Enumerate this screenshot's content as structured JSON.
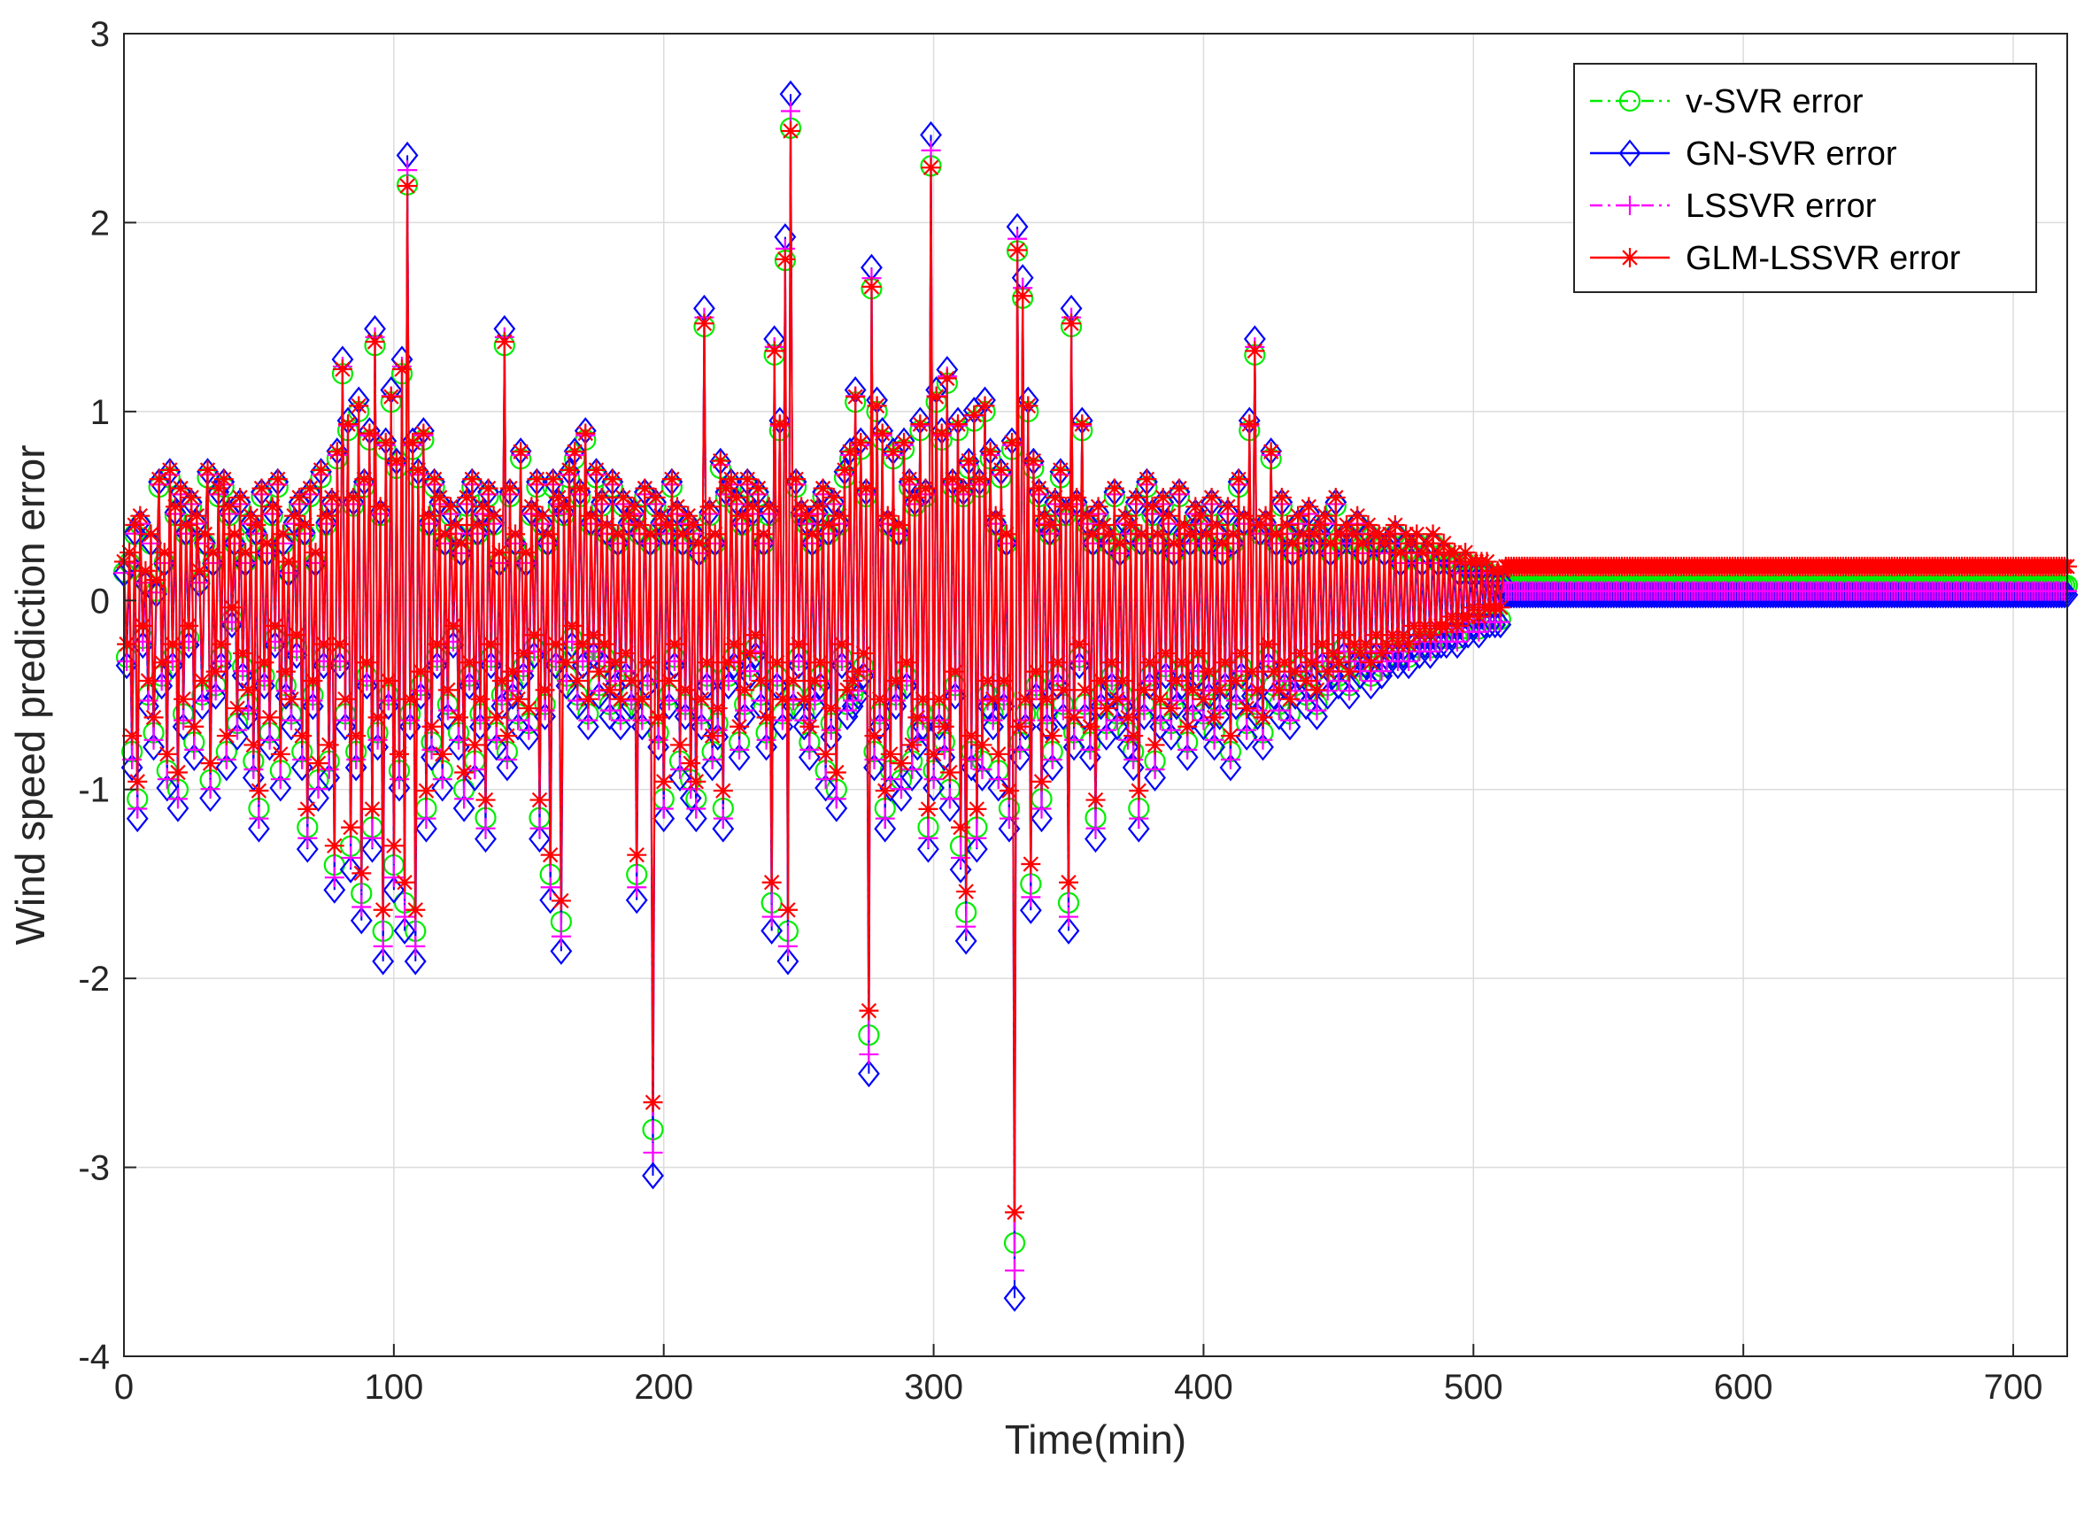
{
  "chart_data": {
    "type": "line",
    "title": "",
    "xlabel": "Time(min)",
    "ylabel": "Wind speed prediction error",
    "xlim": [
      0,
      720
    ],
    "ylim": [
      -4,
      3
    ],
    "xticks": [
      0,
      100,
      200,
      300,
      400,
      500,
      600,
      700
    ],
    "yticks": [
      -4,
      -3,
      -2,
      -1,
      0,
      1,
      2,
      3
    ],
    "xtick_labels": [
      "0",
      "100",
      "200",
      "300",
      "400",
      "500",
      "600",
      "700"
    ],
    "ytick_labels": [
      "-4",
      "-3",
      "-2",
      "-1",
      "0",
      "1",
      "2",
      "3"
    ],
    "grid": true,
    "legend_position": "top-right",
    "sample_step_min": 1,
    "base_error": [
      0.15,
      -0.3,
      0.2,
      -0.8,
      0.35,
      -1.05,
      0.4,
      -0.2,
      0.1,
      -0.5,
      0.3,
      -0.7,
      0.05,
      0.6,
      -0.4,
      0.2,
      -0.9,
      0.65,
      -0.3,
      0.45,
      -1.0,
      0.55,
      -0.6,
      0.35,
      -0.2,
      0.5,
      -0.75,
      0.4,
      0.1,
      -0.5,
      0.3,
      0.65,
      -0.95,
      0.2,
      -0.45,
      0.55,
      -0.3,
      0.6,
      -0.8,
      0.45,
      -0.1,
      0.3,
      -0.65,
      0.5,
      -0.35,
      0.2,
      -0.55,
      0.4,
      -0.85,
      0.35,
      -1.1,
      0.55,
      -0.4,
      0.25,
      -0.7,
      0.45,
      -0.2,
      0.6,
      -0.9,
      0.3,
      -0.45,
      0.15,
      -0.6,
      0.4,
      -0.25,
      0.5,
      -0.8,
      0.35,
      -1.2,
      0.55,
      -0.5,
      0.2,
      -0.95,
      0.65,
      -0.3,
      0.4,
      -0.85,
      0.5,
      -1.4,
      0.75,
      -0.3,
      1.2,
      -0.6,
      0.9,
      -1.3,
      0.5,
      -0.8,
      1.0,
      -1.55,
      0.6,
      -0.4,
      0.85,
      -1.2,
      1.35,
      -0.7,
      0.45,
      -1.75,
      0.8,
      -0.5,
      1.05,
      -1.4,
      0.7,
      -0.9,
      1.2,
      -1.6,
      2.2,
      -0.6,
      0.8,
      -1.75,
      0.65,
      -0.45,
      0.85,
      -1.1,
      0.4,
      -0.75,
      0.6,
      -0.3,
      0.5,
      -0.9,
      0.3,
      -0.55,
      0.45,
      -0.2,
      0.35,
      -0.7,
      0.25,
      -1.0,
      0.5,
      -0.4,
      0.6,
      -0.85,
      0.35,
      -0.6,
      0.45,
      -1.15,
      0.55,
      -0.3,
      0.4,
      -0.7,
      0.2,
      -0.5,
      1.35,
      -0.8,
      0.55,
      -0.45,
      0.3,
      -0.6,
      0.75,
      -0.35,
      0.2,
      -0.65,
      0.45,
      -0.25,
      0.6,
      -1.15,
      0.4,
      -0.55,
      0.3,
      -1.45,
      0.6,
      -0.3,
      0.5,
      -1.7,
      0.45,
      -0.4,
      0.65,
      -0.2,
      0.75,
      -0.5,
      0.55,
      -0.3,
      0.85,
      -0.6,
      0.4,
      -0.25,
      0.65,
      -0.45,
      0.5,
      -0.3,
      0.35,
      -0.55,
      0.6,
      -0.4,
      0.3,
      -0.6,
      0.5,
      -0.35,
      0.4,
      -0.5,
      0.45,
      -1.45,
      0.35,
      -0.6,
      0.55,
      -0.4,
      0.3,
      -2.8,
      0.5,
      -0.7,
      0.4,
      -1.05,
      0.35,
      -0.5,
      0.6,
      -0.3,
      0.45,
      -0.85,
      0.3,
      -0.55,
      0.4,
      -0.95,
      0.35,
      -1.05,
      0.25,
      -0.6,
      1.45,
      -0.4,
      0.45,
      -0.8,
      0.3,
      -0.65,
      0.7,
      -1.1,
      0.55,
      -0.4,
      0.6,
      -0.3,
      0.5,
      -0.75,
      0.4,
      -0.55,
      0.6,
      -0.35,
      0.45,
      -0.25,
      0.55,
      -0.5,
      0.3,
      -0.7,
      0.45,
      -1.6,
      1.3,
      -0.4,
      0.9,
      -0.6,
      1.8,
      -1.75,
      2.5,
      -0.5,
      0.6,
      -0.3,
      0.45,
      -0.6,
      0.4,
      -0.75,
      0.3,
      -0.5,
      0.45,
      -0.4,
      0.55,
      -0.9,
      0.35,
      -0.65,
      0.5,
      -1.0,
      0.4,
      -0.3,
      0.65,
      -0.55,
      0.75,
      -0.5,
      1.05,
      -0.45,
      0.8,
      -0.35,
      0.55,
      -2.3,
      1.65,
      -0.8,
      1.0,
      -0.6,
      0.85,
      -1.1,
      0.4,
      -0.9,
      0.75,
      -0.5,
      0.35,
      -0.95,
      0.8,
      -0.4,
      0.6,
      -0.85,
      0.5,
      -0.7,
      0.9,
      -0.6,
      0.55,
      -1.2,
      2.3,
      -0.9,
      1.05,
      -0.6,
      0.85,
      -0.75,
      1.15,
      -1.0,
      0.6,
      -0.45,
      0.9,
      -1.3,
      0.55,
      -1.65,
      0.7,
      -0.8,
      0.95,
      -1.2,
      0.6,
      -0.85,
      1.0,
      -0.5,
      0.75,
      -0.6,
      0.4,
      -0.9,
      0.65,
      -0.5,
      0.3,
      -1.1,
      0.8,
      -3.4,
      1.85,
      -0.75,
      1.6,
      -0.6,
      1.0,
      -1.5,
      0.7,
      -0.45,
      0.55,
      -1.05,
      0.4,
      -0.6,
      0.35,
      -0.8,
      0.5,
      -0.4,
      0.65,
      -0.55,
      0.45,
      -1.6,
      1.45,
      -0.7,
      0.5,
      -0.3,
      0.9,
      -0.55,
      0.4,
      -0.75,
      0.3,
      -1.15,
      0.45,
      -0.5,
      0.35,
      -0.65,
      0.3,
      -0.4,
      0.55,
      -0.6,
      0.25,
      -0.5,
      0.4,
      -0.7,
      0.35,
      -0.8,
      0.5,
      -1.1,
      0.3,
      -0.55,
      0.6,
      -0.4,
      0.45,
      -0.85,
      0.3,
      -0.6,
      0.5,
      -0.35,
      0.4,
      -0.65,
      0.25,
      -0.5,
      0.55,
      -0.4,
      0.35,
      -0.75,
      0.3,
      -0.55,
      0.45,
      -0.35,
      0.4,
      -0.6,
      0.3,
      -0.45,
      0.5,
      -0.7,
      0.35,
      -0.55,
      0.25,
      -0.4,
      0.45,
      -0.8,
      0.3,
      -0.5,
      0.6,
      -0.35,
      0.4,
      -0.65,
      0.9,
      -0.45,
      1.3,
      -0.55,
      0.35,
      -0.7,
      0.4,
      -0.3,
      0.75,
      -0.45,
      0.3,
      -0.55,
      0.5,
      -0.4,
      0.35,
      -0.6,
      0.25,
      -0.45,
      0.4,
      -0.35,
      0.3,
      -0.5,
      0.45,
      -0.4,
      0.3,
      -0.55,
      0.35,
      -0.3,
      0.4,
      -0.45,
      0.25,
      -0.35,
      0.5,
      -0.4,
      0.3,
      -0.25,
      0.35,
      -0.45,
      0.3,
      -0.3,
      0.4,
      -0.35,
      0.25,
      -0.3,
      0.35,
      -0.4,
      0.3,
      -0.25,
      0.3,
      -0.35,
      0.25,
      -0.3,
      0.3,
      -0.25,
      0.35,
      -0.3,
      0.2,
      -0.25,
      0.3,
      -0.3,
      0.25,
      -0.2,
      0.3,
      -0.25,
      0.2,
      -0.2,
      0.25,
      -0.25,
      0.3,
      -0.2,
      0.2,
      -0.2,
      0.25,
      -0.2,
      0.2,
      -0.15,
      0.2,
      -0.2,
      0.15,
      -0.15,
      0.2,
      -0.15,
      0.15,
      -0.1,
      0.15,
      -0.15,
      0.15,
      -0.1,
      0.15,
      -0.1,
      0.1,
      -0.1,
      0.1,
      -0.1,
      0.1
    ],
    "series": [
      {
        "name": "v-SVR error",
        "legend_label": "v-SVR error",
        "color": "#00ee00",
        "linestyle": "dash-dot",
        "marker": "circle",
        "transform": {
          "scale": 1.0,
          "offset": 0.0
        },
        "tail_value": 0.08
      },
      {
        "name": "GN-SVR error",
        "legend_label": "GN-SVR error",
        "color": "#0000ff",
        "linestyle": "solid",
        "marker": "diamond",
        "transform": {
          "scale": 1.08,
          "offset": -0.02
        },
        "tail_value": 0.03
      },
      {
        "name": "LSSVR error",
        "legend_label": "LSSVR error",
        "color": "#ff00ff",
        "linestyle": "dash-dot",
        "marker": "plus",
        "transform": {
          "scale": 1.04,
          "offset": -0.01
        },
        "tail_value": 0.05
      },
      {
        "name": "GLM-LSSVR error",
        "legend_label": "GLM-LSSVR error",
        "color": "#ff0000",
        "linestyle": "solid",
        "marker": "star",
        "transform": {
          "scale": 0.97,
          "offset": 0.06
        },
        "tail_value": 0.18
      }
    ]
  }
}
